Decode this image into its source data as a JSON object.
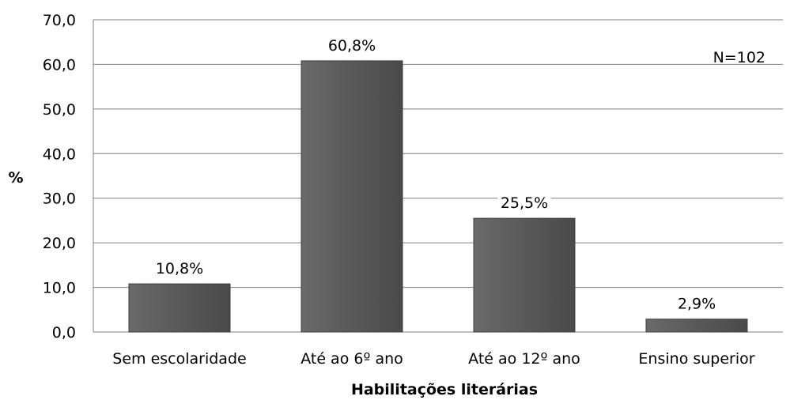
{
  "chart_data": {
    "type": "bar",
    "categories": [
      "Sem escolaridade",
      "Até ao 6º ano",
      "Até ao 12º ano",
      "Ensino superior"
    ],
    "values": [
      10.8,
      60.8,
      25.5,
      2.9
    ],
    "data_labels": [
      "10,8%",
      "60,8%",
      "25,5%",
      "2,9%"
    ],
    "xlabel": "Habilitações literárias",
    "ylabel": "%",
    "ylim": [
      0,
      70
    ],
    "yticks": [
      "0,0",
      "10,0",
      "20,0",
      "30,0",
      "40,0",
      "50,0",
      "60,0",
      "70,0"
    ],
    "annotation": "N=102",
    "grid": true,
    "bar_color": "#595959",
    "grid_color": "#7f7f7f"
  }
}
